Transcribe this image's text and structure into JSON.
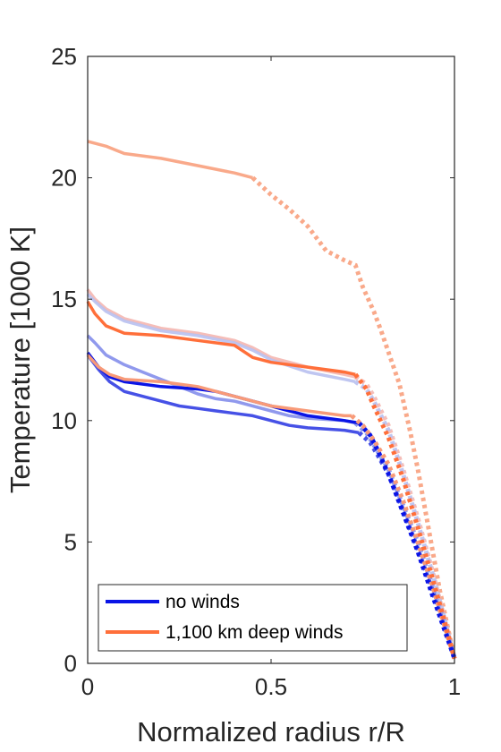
{
  "chart_data": {
    "type": "line",
    "xlabel": "Normalized radius r/R",
    "ylabel": "Temperature [1000 K]",
    "xlim": [
      0,
      1
    ],
    "ylim": [
      0,
      25
    ],
    "xticks": [
      0,
      0.5,
      1
    ],
    "xtick_labels": [
      "0",
      "0.5",
      "1"
    ],
    "yticks": [
      0,
      5,
      10,
      15,
      20,
      25
    ],
    "ytick_labels": [
      "0",
      "5",
      "10",
      "15",
      "20",
      "25"
    ],
    "grid": false,
    "legend": {
      "placement": "bottom-left",
      "entries": [
        {
          "label": "no winds",
          "color": "#0a14e6"
        },
        {
          "label": "1,100 km deep winds",
          "color": "#ff6f3a"
        }
      ]
    },
    "series": [
      {
        "color": "#f9a98a",
        "opacity": 1.0,
        "solid": [
          [
            0,
            21.5
          ],
          [
            0.05,
            21.3
          ],
          [
            0.1,
            21.0
          ],
          [
            0.2,
            20.8
          ],
          [
            0.3,
            20.5
          ],
          [
            0.4,
            20.2
          ],
          [
            0.45,
            20.0
          ]
        ],
        "dotted": [
          [
            0.45,
            20.0
          ],
          [
            0.5,
            19.3
          ],
          [
            0.55,
            18.7
          ],
          [
            0.6,
            18.0
          ],
          [
            0.65,
            17.0
          ],
          [
            0.7,
            16.6
          ],
          [
            0.73,
            16.4
          ],
          [
            0.75,
            15.5
          ],
          [
            0.78,
            14.5
          ],
          [
            0.8,
            13.7
          ],
          [
            0.85,
            11.5
          ],
          [
            0.88,
            9.5
          ],
          [
            0.9,
            8.0
          ],
          [
            0.93,
            5.5
          ],
          [
            0.96,
            3.0
          ],
          [
            1.0,
            0.2
          ]
        ]
      },
      {
        "color": "#f4b6b0",
        "opacity": 0.9,
        "solid": [
          [
            0,
            15.4
          ],
          [
            0.02,
            15.0
          ],
          [
            0.05,
            14.6
          ],
          [
            0.1,
            14.2
          ],
          [
            0.15,
            14.0
          ],
          [
            0.2,
            13.8
          ],
          [
            0.3,
            13.6
          ],
          [
            0.4,
            13.3
          ],
          [
            0.45,
            13.0
          ],
          [
            0.5,
            12.6
          ],
          [
            0.6,
            12.2
          ],
          [
            0.7,
            11.9
          ],
          [
            0.73,
            11.8
          ]
        ],
        "dotted": [
          [
            0.73,
            11.8
          ],
          [
            0.76,
            11.5
          ],
          [
            0.78,
            11.0
          ],
          [
            0.82,
            9.8
          ],
          [
            0.86,
            8.0
          ],
          [
            0.9,
            6.0
          ],
          [
            0.94,
            3.8
          ],
          [
            0.97,
            2.0
          ],
          [
            1.0,
            0.2
          ]
        ]
      },
      {
        "color": "#b8c0f0",
        "opacity": 0.9,
        "solid": [
          [
            0,
            15.2
          ],
          [
            0.02,
            14.9
          ],
          [
            0.05,
            14.5
          ],
          [
            0.1,
            14.1
          ],
          [
            0.15,
            13.9
          ],
          [
            0.2,
            13.7
          ],
          [
            0.3,
            13.5
          ],
          [
            0.4,
            13.2
          ],
          [
            0.45,
            12.9
          ],
          [
            0.5,
            12.5
          ],
          [
            0.6,
            12.0
          ],
          [
            0.7,
            11.7
          ],
          [
            0.73,
            11.6
          ]
        ],
        "dotted": [
          [
            0.73,
            11.6
          ],
          [
            0.76,
            11.3
          ],
          [
            0.78,
            10.8
          ],
          [
            0.82,
            9.6
          ],
          [
            0.86,
            7.8
          ],
          [
            0.9,
            5.8
          ],
          [
            0.94,
            3.7
          ],
          [
            0.97,
            2.0
          ],
          [
            1.0,
            0.2
          ]
        ]
      },
      {
        "color": "#8a94ec",
        "opacity": 0.95,
        "solid": [
          [
            0,
            13.5
          ],
          [
            0.02,
            13.2
          ],
          [
            0.05,
            12.7
          ],
          [
            0.1,
            12.3
          ],
          [
            0.15,
            12.0
          ],
          [
            0.2,
            11.7
          ],
          [
            0.25,
            11.4
          ],
          [
            0.3,
            11.1
          ],
          [
            0.35,
            10.9
          ],
          [
            0.4,
            10.8
          ],
          [
            0.45,
            10.6
          ],
          [
            0.5,
            10.4
          ],
          [
            0.55,
            10.2
          ],
          [
            0.6,
            10.1
          ],
          [
            0.7,
            10.0
          ],
          [
            0.73,
            9.9
          ]
        ],
        "dotted": [
          [
            0.73,
            9.9
          ],
          [
            0.76,
            9.5
          ],
          [
            0.78,
            9.0
          ],
          [
            0.82,
            8.0
          ],
          [
            0.86,
            6.5
          ],
          [
            0.9,
            5.0
          ],
          [
            0.94,
            3.2
          ],
          [
            0.97,
            1.8
          ],
          [
            1.0,
            0.2
          ]
        ]
      },
      {
        "color": "#4651e6",
        "opacity": 1.0,
        "solid": [
          [
            0,
            12.7
          ],
          [
            0.03,
            12.1
          ],
          [
            0.06,
            11.6
          ],
          [
            0.1,
            11.2
          ],
          [
            0.15,
            11.0
          ],
          [
            0.2,
            10.8
          ],
          [
            0.25,
            10.6
          ],
          [
            0.3,
            10.5
          ],
          [
            0.35,
            10.4
          ],
          [
            0.4,
            10.3
          ],
          [
            0.45,
            10.2
          ],
          [
            0.5,
            10.0
          ],
          [
            0.55,
            9.8
          ],
          [
            0.6,
            9.7
          ],
          [
            0.7,
            9.6
          ],
          [
            0.74,
            9.5
          ]
        ],
        "dotted": [
          [
            0.74,
            9.5
          ],
          [
            0.77,
            9.1
          ],
          [
            0.79,
            8.6
          ],
          [
            0.82,
            7.8
          ],
          [
            0.86,
            6.3
          ],
          [
            0.9,
            4.7
          ],
          [
            0.94,
            3.0
          ],
          [
            0.97,
            1.6
          ],
          [
            1.0,
            0.2
          ]
        ]
      },
      {
        "color": "#0a14e6",
        "opacity": 1.0,
        "solid": [
          [
            0,
            12.8
          ],
          [
            0.03,
            12.2
          ],
          [
            0.06,
            11.8
          ],
          [
            0.1,
            11.6
          ],
          [
            0.2,
            11.4
          ],
          [
            0.3,
            11.3
          ],
          [
            0.35,
            11.2
          ],
          [
            0.4,
            11.0
          ],
          [
            0.45,
            10.8
          ],
          [
            0.5,
            10.6
          ],
          [
            0.55,
            10.4
          ],
          [
            0.6,
            10.2
          ],
          [
            0.7,
            10.0
          ],
          [
            0.74,
            9.9
          ]
        ],
        "dotted": [
          [
            0.74,
            9.9
          ],
          [
            0.77,
            9.4
          ],
          [
            0.79,
            8.8
          ],
          [
            0.82,
            7.8
          ],
          [
            0.86,
            6.2
          ],
          [
            0.9,
            4.6
          ],
          [
            0.94,
            2.8
          ],
          [
            0.97,
            1.5
          ],
          [
            1.0,
            0.2
          ]
        ]
      },
      {
        "color": "#f89a78",
        "opacity": 1.0,
        "solid": [
          [
            0,
            12.7
          ],
          [
            0.03,
            12.2
          ],
          [
            0.06,
            11.9
          ],
          [
            0.1,
            11.7
          ],
          [
            0.2,
            11.6
          ],
          [
            0.3,
            11.4
          ],
          [
            0.4,
            11.0
          ],
          [
            0.45,
            10.8
          ],
          [
            0.5,
            10.6
          ],
          [
            0.6,
            10.4
          ],
          [
            0.7,
            10.2
          ],
          [
            0.72,
            10.2
          ]
        ],
        "dotted": [
          [
            0.72,
            10.2
          ],
          [
            0.75,
            9.8
          ],
          [
            0.78,
            9.2
          ],
          [
            0.82,
            8.2
          ],
          [
            0.86,
            6.7
          ],
          [
            0.9,
            5.0
          ],
          [
            0.94,
            3.2
          ],
          [
            0.97,
            1.7
          ],
          [
            1.0,
            0.2
          ]
        ]
      },
      {
        "color": "#ff6f3a",
        "opacity": 1.0,
        "solid": [
          [
            0,
            14.9
          ],
          [
            0.02,
            14.4
          ],
          [
            0.05,
            13.9
          ],
          [
            0.1,
            13.6
          ],
          [
            0.2,
            13.5
          ],
          [
            0.3,
            13.3
          ],
          [
            0.4,
            13.1
          ],
          [
            0.45,
            12.6
          ],
          [
            0.5,
            12.4
          ],
          [
            0.6,
            12.2
          ],
          [
            0.7,
            12.0
          ],
          [
            0.73,
            11.9
          ]
        ],
        "dotted": [
          [
            0.73,
            11.9
          ],
          [
            0.76,
            11.3
          ],
          [
            0.78,
            10.6
          ],
          [
            0.82,
            9.3
          ],
          [
            0.86,
            7.6
          ],
          [
            0.9,
            5.6
          ],
          [
            0.94,
            3.5
          ],
          [
            0.97,
            1.9
          ],
          [
            1.0,
            0.2
          ]
        ]
      }
    ]
  }
}
